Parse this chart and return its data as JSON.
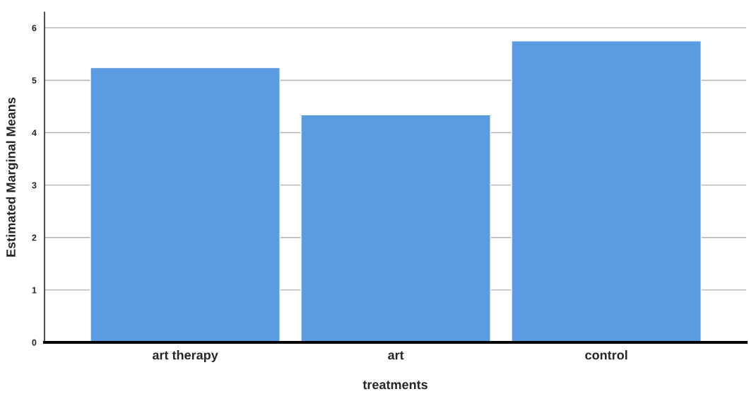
{
  "chart_data": {
    "type": "bar",
    "xlabel": "treatments",
    "ylabel": "Estimated Marginal Means",
    "categories": [
      "art therapy",
      "art",
      "control"
    ],
    "values": [
      5.24,
      4.34,
      5.75
    ],
    "color": "#5b9be1",
    "ylim": [
      0,
      6.3
    ],
    "yticks": [
      0,
      1,
      2,
      3,
      4,
      5,
      6
    ],
    "grid": "y"
  }
}
